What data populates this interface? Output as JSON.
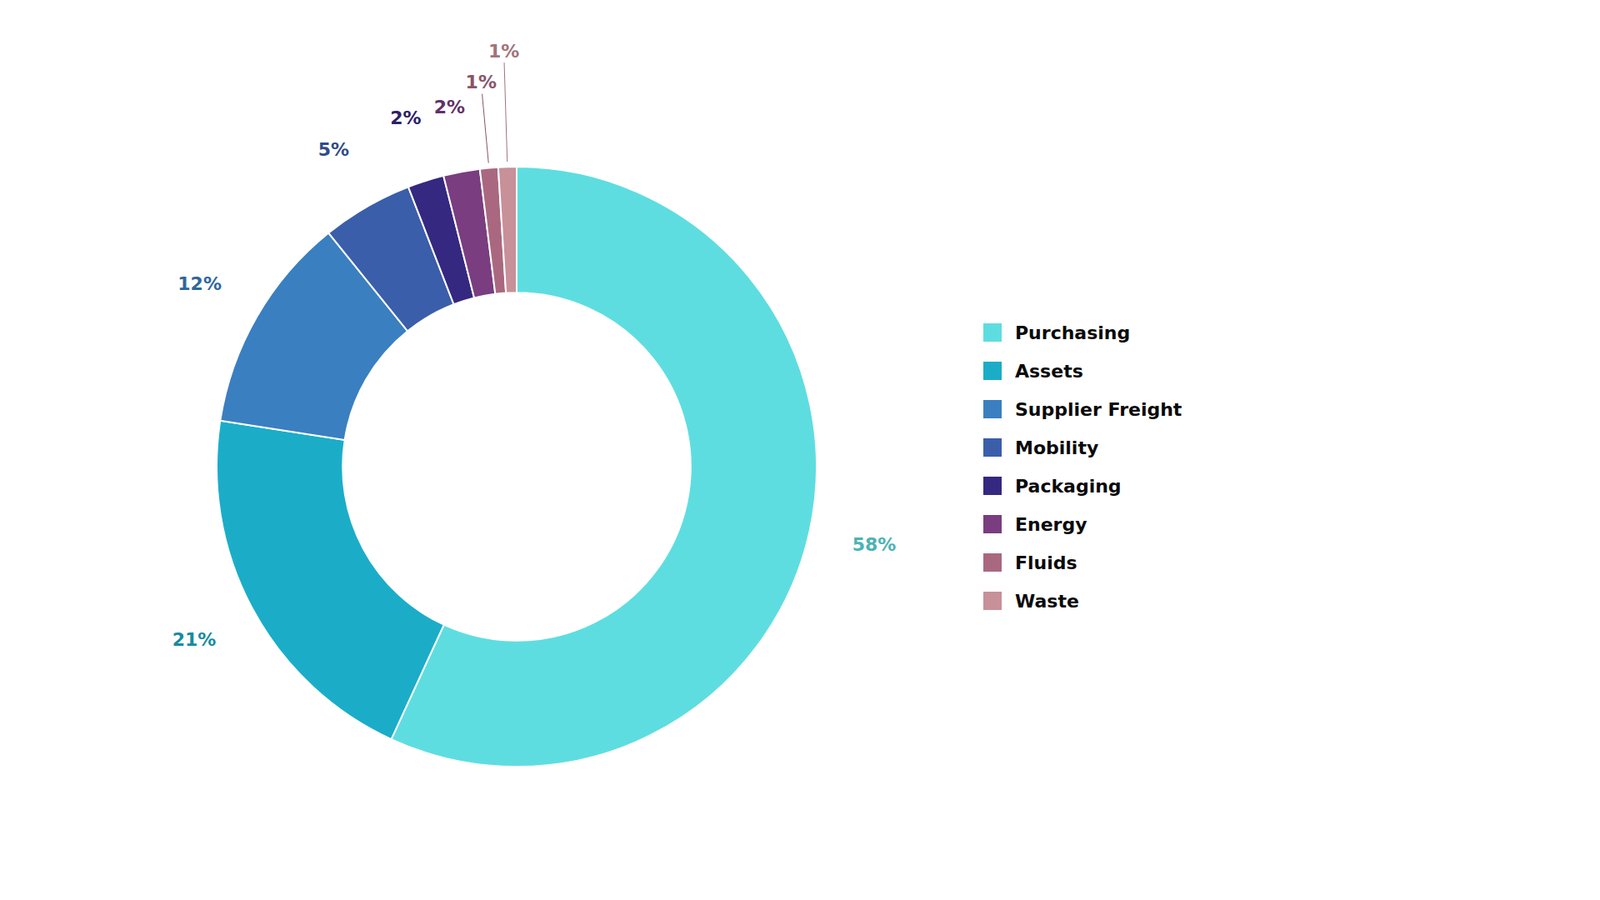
{
  "chart_data": {
    "type": "donut",
    "categories": [
      "Purchasing",
      "Assets",
      "Supplier Freight",
      "Mobility",
      "Packaging",
      "Energy",
      "Fluids",
      "Waste"
    ],
    "values": [
      58,
      21,
      12,
      5,
      2,
      2,
      1,
      1
    ],
    "value_labels": [
      "58%",
      "21%",
      "12%",
      "5%",
      "2%",
      "2%",
      "1%",
      "1%"
    ],
    "colors": [
      "#5EDDE0",
      "#1BADC8",
      "#3A7FC0",
      "#3A5EAA",
      "#352880",
      "#7A3D80",
      "#AA6880",
      "#C89098"
    ],
    "data_labels": true,
    "legend": "right"
  }
}
